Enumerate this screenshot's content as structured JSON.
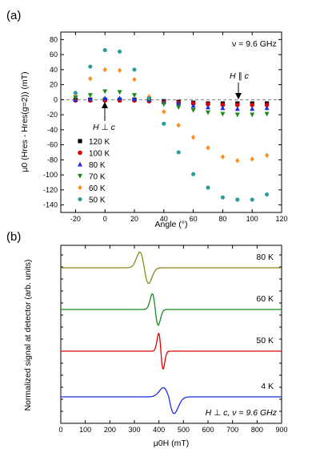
{
  "chart_data": [
    {
      "type": "scatter",
      "panel_label": "(a)",
      "xlabel": "Angle (°)",
      "ylabel": "μ0 (Hres - Hres(g=2)) (mT)",
      "xlim": [
        -30,
        120
      ],
      "ylim": [
        -150,
        90
      ],
      "xticks": [
        -20,
        0,
        20,
        40,
        60,
        80,
        100,
        120
      ],
      "yticks": [
        -140,
        -120,
        -100,
        -80,
        -60,
        -40,
        -20,
        0,
        20,
        40,
        60,
        80
      ],
      "annotations": {
        "frequency": "ν = 9.6 GHz",
        "parallel": "H ∥ c",
        "perpendicular": "H ⊥ c"
      },
      "legend_position": "lower-left",
      "reference_line_y": 0,
      "x": [
        -20,
        -10,
        0,
        10,
        20,
        30,
        40,
        50,
        60,
        70,
        80,
        90,
        100,
        110
      ],
      "series": [
        {
          "name": "120 K",
          "marker": "square",
          "color": "#000000",
          "values": [
            0,
            0,
            0,
            0,
            0,
            -1,
            -2,
            -3,
            -4,
            -5,
            -5,
            -5,
            -5,
            -5
          ]
        },
        {
          "name": "100 K",
          "marker": "circle",
          "color": "#e00000",
          "values": [
            -1,
            -1,
            -1,
            -1,
            -1,
            -2,
            -3,
            -4,
            -5,
            -6,
            -7,
            -7,
            -7,
            -7
          ]
        },
        {
          "name": "80 K",
          "marker": "triangle-up",
          "color": "#1f2fe0",
          "values": [
            0,
            1,
            2,
            2,
            1,
            0,
            -3,
            -5,
            -8,
            -10,
            -11,
            -12,
            -12,
            -11
          ]
        },
        {
          "name": "70 K",
          "marker": "triangle-down",
          "color": "#1a8a1a",
          "values": [
            3,
            6,
            11,
            10,
            6,
            1,
            -6,
            -10,
            -14,
            -17,
            -19,
            -20,
            -20,
            -19
          ]
        },
        {
          "name": "60 K",
          "marker": "diamond",
          "color": "#ff8c1a",
          "values": [
            8,
            28,
            40,
            39,
            27,
            4,
            -16,
            -34,
            -50,
            -64,
            -76,
            -81,
            -79,
            -74
          ]
        },
        {
          "name": "50 K",
          "marker": "hexagon",
          "color": "#2a9d9a",
          "values": [
            9,
            44,
            66,
            64,
            40,
            2,
            -32,
            -70,
            -99,
            -117,
            -130,
            -133,
            -133,
            -126
          ]
        }
      ]
    },
    {
      "type": "line",
      "panel_label": "(b)",
      "xlabel": "μ0H (mT)",
      "ylabel": "Normalized signal at detector (arb. units)",
      "xlim": [
        0,
        900
      ],
      "xticks": [
        0,
        100,
        200,
        300,
        400,
        500,
        600,
        700,
        800,
        900
      ],
      "annotation": "H ⊥ c, ν = 9.6 GHz",
      "series": [
        {
          "name": "4 K",
          "color": "#1f2fe0",
          "baseline": 3,
          "center": 440,
          "width": 22,
          "amplitude": 0.8,
          "shape": "broad"
        },
        {
          "name": "50 K",
          "color": "#e00000",
          "baseline": 2,
          "center": 408,
          "width": 9,
          "amplitude": 0.85,
          "shape": "sharp"
        },
        {
          "name": "60 K",
          "color": "#1a8a1a",
          "baseline": 1,
          "center": 385,
          "width": 12,
          "amplitude": 0.75,
          "shape": "sharp"
        },
        {
          "name": "80 K",
          "color": "#8a8a1a",
          "baseline": 0,
          "center": 340,
          "width": 18,
          "amplitude": 0.75,
          "shape": "sharp"
        }
      ]
    }
  ]
}
